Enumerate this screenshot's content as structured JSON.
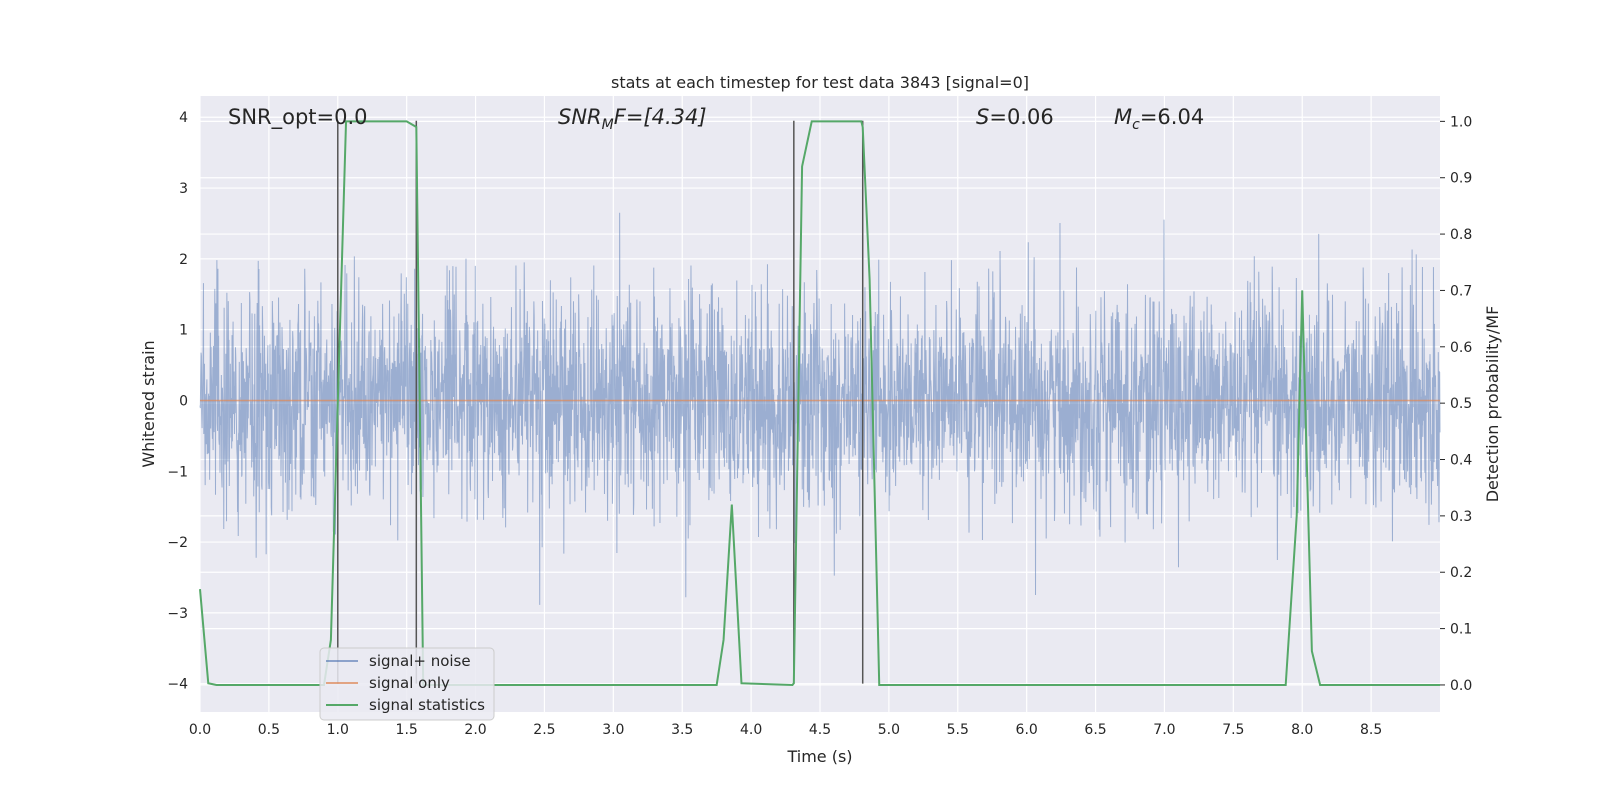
{
  "chart_data": {
    "type": "line",
    "title": "stats at each timestep for test data 3843 [signal=0]",
    "xlabel": "Time (s)",
    "ylabel": "Whitened strain",
    "ylabel_right": "Detection probability/MF",
    "xlim": [
      0.0,
      9.0
    ],
    "ylim": [
      -4.4,
      4.3
    ],
    "ylim_right": [
      -0.048,
      1.045
    ],
    "x_ticks": [
      0.0,
      0.5,
      1.0,
      1.5,
      2.0,
      2.5,
      3.0,
      3.5,
      4.0,
      4.5,
      5.0,
      5.5,
      6.0,
      6.5,
      7.0,
      7.5,
      8.0,
      8.5
    ],
    "x_tick_labels": [
      "0.0",
      "0.5",
      "1.0",
      "1.5",
      "2.0",
      "2.5",
      "3.0",
      "3.5",
      "4.0",
      "4.5",
      "5.0",
      "5.5",
      "6.0",
      "6.5",
      "7.0",
      "7.5",
      "8.0",
      "8.5"
    ],
    "y_ticks": [
      4,
      3,
      2,
      1,
      0,
      -1,
      -2,
      -3,
      -4
    ],
    "y_tick_labels": [
      "4",
      "3",
      "2",
      "1",
      "0",
      "−1",
      "−2",
      "−3",
      "−4"
    ],
    "y_ticks_right": [
      1.0,
      0.9,
      0.8,
      0.7,
      0.6,
      0.5,
      0.4,
      0.3,
      0.2,
      0.1,
      0.0
    ],
    "y_tick_labels_right": [
      "1.0",
      "0.9",
      "0.8",
      "0.7",
      "0.6",
      "0.5",
      "0.4",
      "0.3",
      "0.2",
      "0.1",
      "0.0"
    ],
    "grid": true,
    "legend_position": "lower-left",
    "annotations": {
      "snr_opt": {
        "text": "SNR_opt=0.0"
      },
      "snr_mf": {
        "base": "SNR",
        "sub": "M",
        "rest": "F=[4.34]"
      },
      "s": {
        "base": "S",
        "rest": "=0.06"
      },
      "mc": {
        "base": "M",
        "sub": "c",
        "rest": "=6.04"
      }
    },
    "vertical_lines": [
      {
        "x": 1.0,
        "y_top": 3.95,
        "y_bottom": -4.0
      },
      {
        "x": 1.57,
        "y_top": 3.95,
        "y_bottom": -4.0
      },
      {
        "x": 4.31,
        "y_top": 3.95,
        "y_bottom": -4.0
      },
      {
        "x": 4.81,
        "y_top": 3.95,
        "y_bottom": -4.0
      }
    ],
    "series": [
      {
        "name": "signal+ noise",
        "color": "#4c72b0",
        "style": "noise",
        "amplitude_envelope": {
          "sigma": 0.75,
          "min": -4.0,
          "max": 3.3
        }
      },
      {
        "name": "signal only",
        "color": "#dd8452",
        "x": [
          0.0,
          9.0
        ],
        "values": [
          0.0,
          0.0
        ]
      },
      {
        "name": "signal statistics",
        "color": "#55a868",
        "axis": "right",
        "x": [
          0.0,
          0.06,
          0.12,
          0.9,
          0.95,
          1.0,
          1.06,
          1.5,
          1.57,
          1.6,
          1.62,
          3.75,
          3.8,
          3.86,
          3.93,
          4.3,
          4.31,
          4.37,
          4.44,
          4.8,
          4.81,
          4.86,
          4.93,
          7.88,
          7.96,
          8.0,
          8.07,
          8.13,
          9.0
        ],
        "values": [
          0.17,
          0.003,
          0.0,
          0.0,
          0.08,
          0.5,
          1.0,
          1.0,
          0.99,
          0.4,
          0.0,
          0.0,
          0.08,
          0.32,
          0.003,
          0.0,
          0.003,
          0.92,
          1.0,
          1.0,
          0.99,
          0.72,
          0.0,
          0.0,
          0.3,
          0.7,
          0.06,
          0.0,
          0.0
        ]
      }
    ]
  }
}
